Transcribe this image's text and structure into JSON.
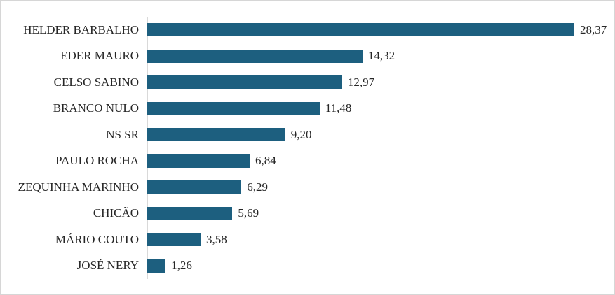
{
  "chart_data": {
    "type": "bar",
    "orientation": "horizontal",
    "title": "",
    "xlabel": "",
    "ylabel": "",
    "grid": false,
    "legend": null,
    "xlim": [
      0,
      30
    ],
    "categories": [
      "HELDER BARBALHO",
      "EDER MAURO",
      "CELSO SABINO",
      "BRANCO NULO",
      "NS SR",
      "PAULO ROCHA",
      "ZEQUINHA MARINHO",
      "CHICÃO",
      "MÁRIO COUTO",
      "JOSÉ NERY"
    ],
    "values": [
      28.37,
      14.32,
      12.97,
      11.48,
      9.2,
      6.84,
      6.29,
      5.69,
      3.58,
      1.26
    ],
    "value_labels": [
      "28,37",
      "14,32",
      "12,97",
      "11,48",
      "9,20",
      "6,84",
      "6,29",
      "5,69",
      "3,58",
      "1,26"
    ],
    "bar_color": "#1d5f7f",
    "axis_line_color": "#d9d9d9",
    "text_color": "#262626",
    "frame_border_color": "#d6d6d6",
    "background_color": "#ffffff"
  }
}
